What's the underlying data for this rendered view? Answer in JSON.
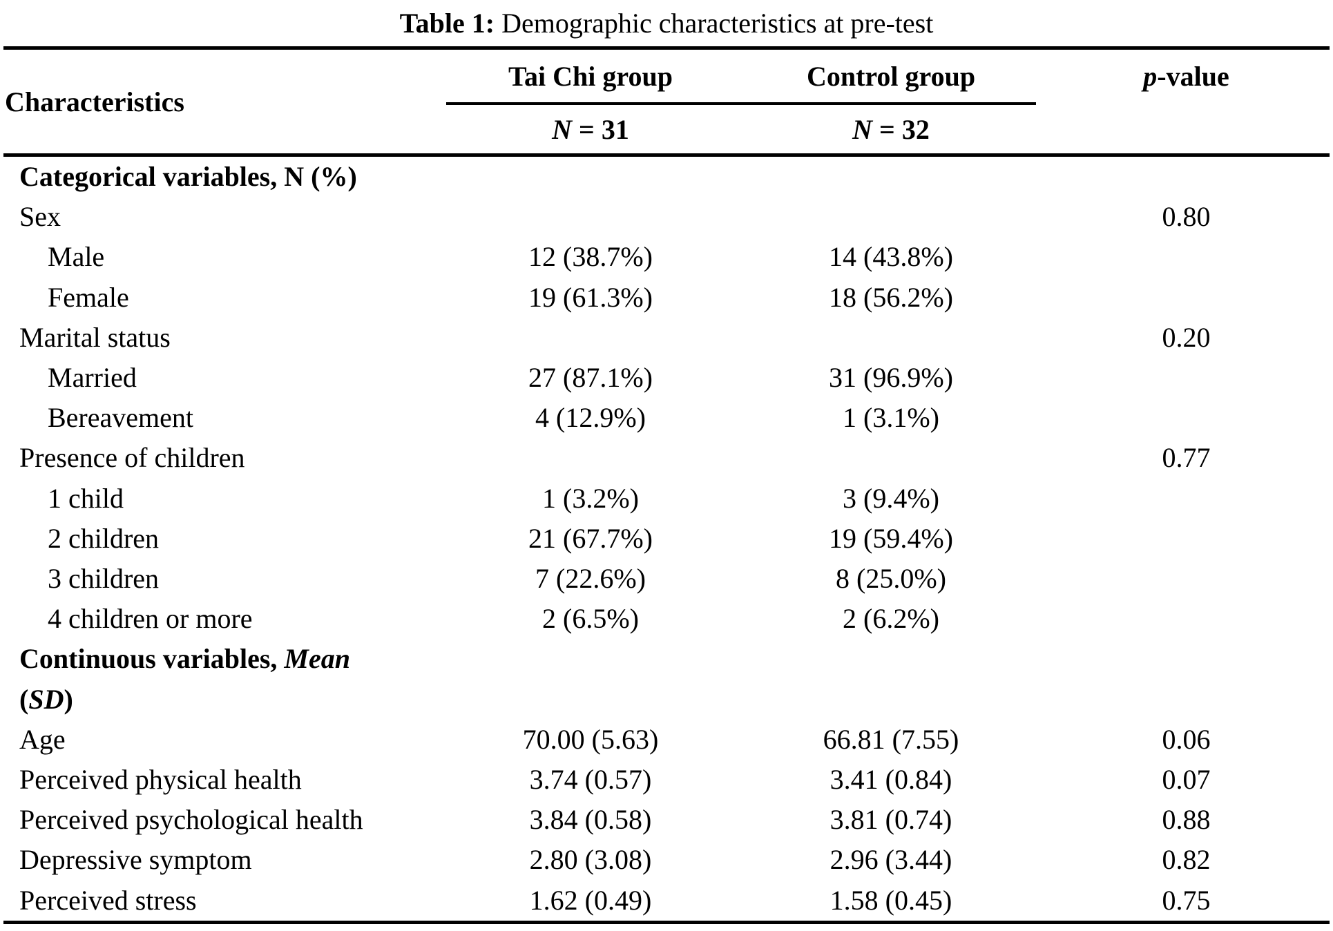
{
  "title": {
    "label": "Table 1: ",
    "caption": "Demographic characteristics at pre-test"
  },
  "header": {
    "characteristics": "Characteristics",
    "group1": "Tai Chi group",
    "group2": "Control group",
    "p_italic": "p",
    "p_rest": "-value",
    "n_italic": "N",
    "n1_rest": " = 31",
    "n2_rest": " = 32"
  },
  "rows": [
    {
      "label": "Categorical variables, N (%)",
      "tai_chi": "",
      "control": "",
      "p": ""
    },
    {
      "label": "Sex",
      "tai_chi": "",
      "control": "",
      "p": "0.80"
    },
    {
      "label": "Male",
      "tai_chi": "12 (38.7%)",
      "control": "14 (43.8%)",
      "p": ""
    },
    {
      "label": "Female",
      "tai_chi": "19 (61.3%)",
      "control": "18 (56.2%)",
      "p": ""
    },
    {
      "label": "Marital status",
      "tai_chi": "",
      "control": "",
      "p": "0.20"
    },
    {
      "label": "Married",
      "tai_chi": "27 (87.1%)",
      "control": "31 (96.9%)",
      "p": ""
    },
    {
      "label": "Bereavement",
      "tai_chi": "4 (12.9%)",
      "control": "1 (3.1%)",
      "p": ""
    },
    {
      "label": "Presence of children",
      "tai_chi": "",
      "control": "",
      "p": "0.77"
    },
    {
      "label": "1 child",
      "tai_chi": "1 (3.2%)",
      "control": "3 (9.4%)",
      "p": ""
    },
    {
      "label": "2 children",
      "tai_chi": "21 (67.7%)",
      "control": "19 (59.4%)",
      "p": ""
    },
    {
      "label": "3 children",
      "tai_chi": "7 (22.6%)",
      "control": "8 (25.0%)",
      "p": ""
    },
    {
      "label": "4 children or more",
      "tai_chi": "2 (6.5%)",
      "control": "2 (6.2%)",
      "p": ""
    },
    {
      "label": "Continuous variables, ",
      "label_italic": "Mean",
      "label2_open": "(",
      "label2_italic": "SD",
      "label2_close": ")",
      "tai_chi": "",
      "control": "",
      "p": ""
    },
    {
      "label": "Age",
      "tai_chi": "70.00 (5.63)",
      "control": "66.81 (7.55)",
      "p": "0.06"
    },
    {
      "label": "Perceived physical health",
      "tai_chi": "3.74 (0.57)",
      "control": "3.41 (0.84)",
      "p": "0.07"
    },
    {
      "label": "Perceived psychological health",
      "tai_chi": "3.84 (0.58)",
      "control": "3.81 (0.74)",
      "p": "0.88"
    },
    {
      "label": "Depressive symptom",
      "tai_chi": "2.80 (3.08)",
      "control": "2.96 (3.44)",
      "p": "0.82"
    },
    {
      "label": "Perceived stress",
      "tai_chi": "1.62 (0.49)",
      "control": "1.58 (0.45)",
      "p": "0.75"
    }
  ],
  "colors": {
    "text": "#000000",
    "background": "#ffffff",
    "rule": "#000000"
  }
}
